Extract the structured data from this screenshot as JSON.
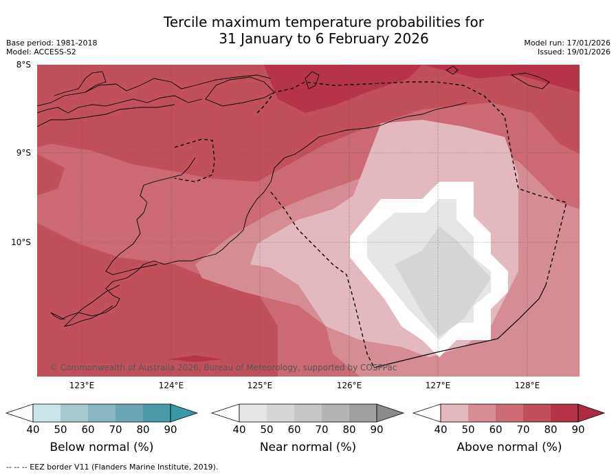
{
  "title_line1": "Tercile maximum temperature probabilities for",
  "title_line2": "31 January to 6 February 2026",
  "base_period": "Base period: 1981-2018",
  "model": "Model: ACCESS-S2",
  "model_run": "Model run: 17/01/2026",
  "issued": "Issued: 19/01/2026",
  "lat_labels": [
    "8°S",
    "9°S",
    "10°S"
  ],
  "lon_labels": [
    "123°E",
    "124°E",
    "125°E",
    "126°E",
    "127°E",
    "128°E"
  ],
  "copyright": "© Commonwealth of Australia 2026, Bureau of Meteorology, supported by COSPPac",
  "colorbars": [
    {
      "name": "Below normal (%)",
      "ticks": [
        "40",
        "50",
        "60",
        "70",
        "80",
        "90"
      ],
      "colors": [
        "#cde3ea",
        "#a8c8d0",
        "#8ab6c1",
        "#6aa6b4",
        "#4a9aac",
        "#3a97a8"
      ]
    },
    {
      "name": "Near normal (%)",
      "ticks": [
        "40",
        "50",
        "60",
        "70",
        "80",
        "90"
      ],
      "colors": [
        "#e6e6e6",
        "#d6d6d6",
        "#c6c6c6",
        "#b4b4b4",
        "#a0a0a0",
        "#8a8a8a"
      ]
    },
    {
      "name": "Above normal (%)",
      "ticks": [
        "40",
        "50",
        "60",
        "70",
        "80",
        "90"
      ],
      "colors": [
        "#e3b8be",
        "#d68c94",
        "#cb6a74",
        "#c0505c",
        "#b6344a",
        "#ae2a42"
      ]
    }
  ],
  "footer": "--  --  -- EEZ border V11 (Flanders Marine Institute, 2019).",
  "map_legend": {
    "above_normal_colors": [
      "#d68c94",
      "#cb6a74",
      "#c0505c",
      "#b6344a"
    ],
    "near_normal_colors": [
      "#e3b8be",
      "#e6e6e6",
      "#d6d6d6"
    ]
  }
}
